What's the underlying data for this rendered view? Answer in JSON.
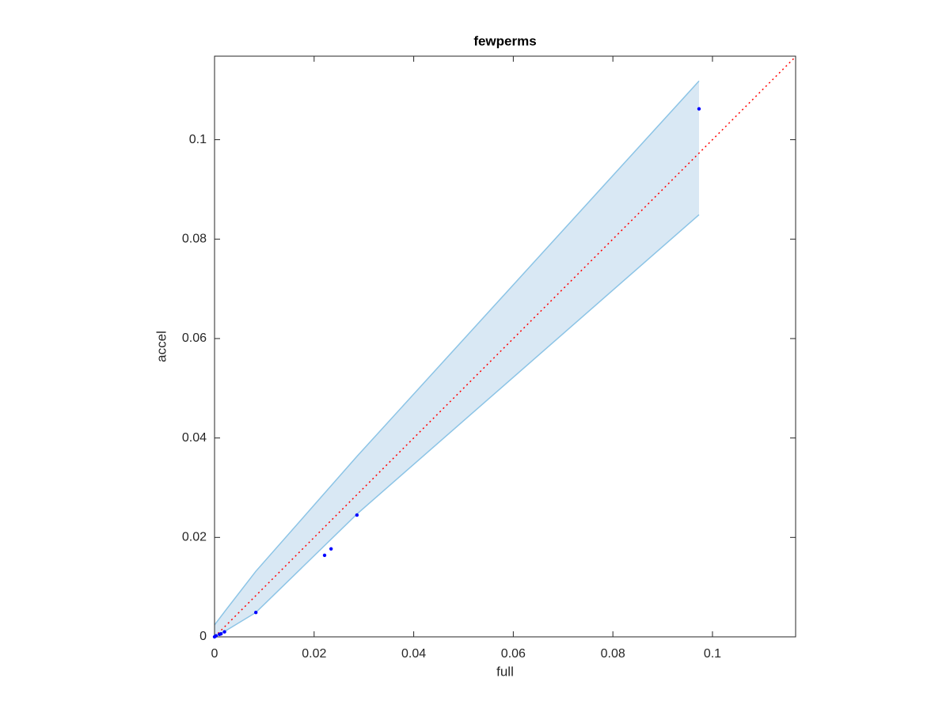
{
  "chart_data": {
    "type": "scatter",
    "title": "fewperms",
    "x_label": "full",
    "y_label": "accel",
    "x": [
      0,
      0.0003,
      0.001,
      0.0013,
      0.002,
      0.0083,
      0.0221,
      0.0234,
      0.0286,
      0.0973
    ],
    "values": [
      0,
      0.0002,
      0.0005,
      0.0006,
      0.001,
      0.0049,
      0.0164,
      0.0177,
      0.0245,
      0.1062
    ],
    "color": "#0000ff",
    "band": {
      "x": [
        0,
        0.0022,
        0.0083,
        0.0286,
        0.0973
      ],
      "upper": [
        0.0024,
        0.0053,
        0.0132,
        0.0363,
        0.1118
      ],
      "lower": [
        0,
        0.0012,
        0.0049,
        0.0247,
        0.0849
      ],
      "color": "#8cc4e6",
      "fill": "#d9e8f4"
    },
    "identity_line": true,
    "identity_color": "#ff0000",
    "xlim": [
      0,
      0.1167
    ],
    "ylim": [
      0,
      0.1168
    ],
    "xticks": [
      0,
      0.02,
      0.04,
      0.06,
      0.08,
      0.1
    ],
    "yticks": [
      0,
      0.02,
      0.04,
      0.06,
      0.08,
      0.1
    ]
  }
}
